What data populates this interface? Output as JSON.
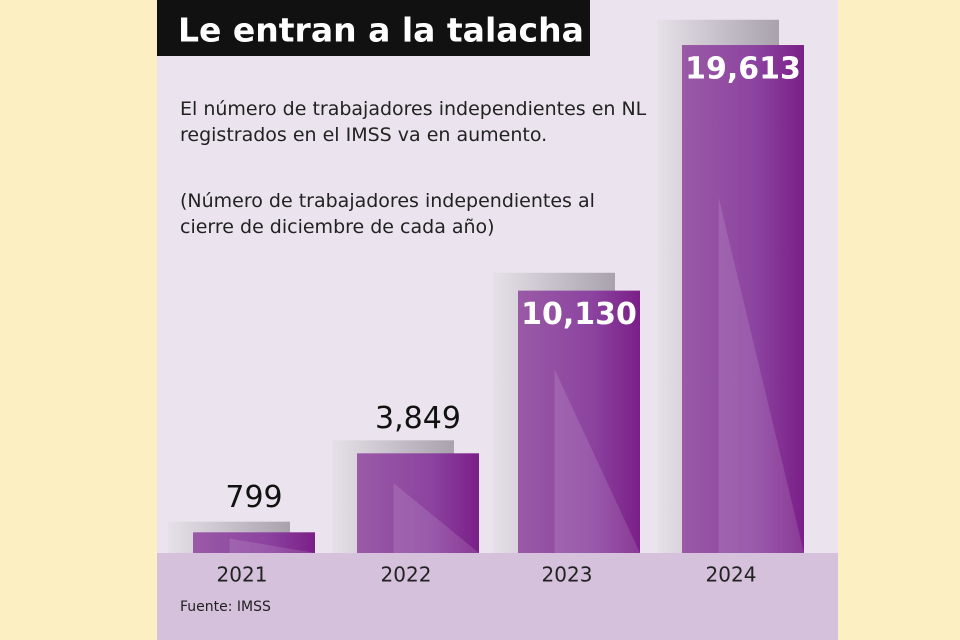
{
  "chart_data": {
    "type": "bar",
    "title": "Le entran a la talacha",
    "subtitle": "El número de trabajadores independientes en NL registrados en el IMSS va en aumento.",
    "note": "(Número de trabajadores independientes al cierre de diciembre de cada año)",
    "source": "Fuente: IMSS",
    "categories": [
      "2021",
      "2022",
      "2023",
      "2024"
    ],
    "values": [
      799,
      3849,
      10130,
      19613
    ],
    "value_labels": [
      "799",
      "3,849",
      "10,130",
      "19,613"
    ],
    "color": "#7e2a8e",
    "ylim": [
      0,
      20000
    ]
  }
}
